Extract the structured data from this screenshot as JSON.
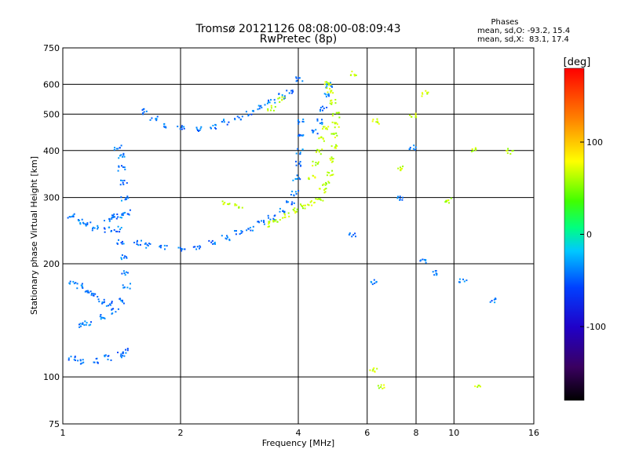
{
  "chart_data": {
    "type": "scatter",
    "title": "Tromsø 20121126 08:08:00-08:09:43",
    "subtitle": "RwPretec (8p)",
    "xlabel": "Frequency [MHz]",
    "ylabel": "Stationary phase Virtual Height [km]",
    "x_scale": "log",
    "y_scale": "log",
    "xlim": [
      1,
      16
    ],
    "ylim": [
      75,
      750
    ],
    "x_ticks": [
      1,
      2,
      4,
      6,
      8,
      10,
      16
    ],
    "x_tick_labels": [
      "1",
      "2",
      "4",
      "6",
      "8",
      "10",
      "16"
    ],
    "y_ticks": [
      75,
      100,
      200,
      300,
      400,
      500,
      600,
      750
    ],
    "y_tick_labels": [
      "75",
      "100",
      "200",
      "300",
      "400",
      "500",
      "600",
      "750"
    ],
    "grid": true,
    "annotation": {
      "title": "Phases",
      "line1": "mean, sd,O: -93.2, 15.4",
      "line2": "mean, sd,X:  83.1, 17.4"
    },
    "colorbar": {
      "label": "[deg]",
      "range": [
        -180,
        180
      ],
      "ticks": [
        100,
        0,
        -100
      ],
      "tick_labels": [
        "100",
        "0",
        "-100"
      ],
      "colormap": "rainbow"
    },
    "series": [
      {
        "name": "O",
        "phase_mean": -93.2,
        "phase_sd": 15.4,
        "points": [
          [
            1.05,
            270
          ],
          [
            1.1,
            260
          ],
          [
            1.15,
            255
          ],
          [
            1.2,
            250
          ],
          [
            1.3,
            248
          ],
          [
            1.38,
            248
          ],
          [
            1.4,
            230
          ],
          [
            1.42,
            210
          ],
          [
            1.43,
            190
          ],
          [
            1.45,
            175
          ],
          [
            1.42,
            160
          ],
          [
            1.35,
            150
          ],
          [
            1.25,
            145
          ],
          [
            1.15,
            140
          ],
          [
            1.1,
            138
          ],
          [
            1.05,
            112
          ],
          [
            1.1,
            110
          ],
          [
            1.2,
            111
          ],
          [
            1.3,
            113
          ],
          [
            1.4,
            115
          ],
          [
            1.45,
            118
          ],
          [
            1.05,
            180
          ],
          [
            1.1,
            175
          ],
          [
            1.15,
            170
          ],
          [
            1.2,
            165
          ],
          [
            1.25,
            160
          ],
          [
            1.3,
            157
          ],
          [
            1.3,
            265
          ],
          [
            1.35,
            268
          ],
          [
            1.4,
            270
          ],
          [
            1.45,
            275
          ],
          [
            1.43,
            300
          ],
          [
            1.42,
            330
          ],
          [
            1.41,
            360
          ],
          [
            1.4,
            390
          ],
          [
            1.38,
            410
          ],
          [
            1.55,
            228
          ],
          [
            1.65,
            225
          ],
          [
            1.8,
            221
          ],
          [
            2.0,
            221
          ],
          [
            2.2,
            223
          ],
          [
            2.4,
            228
          ],
          [
            2.6,
            235
          ],
          [
            2.8,
            242
          ],
          [
            3.0,
            250
          ],
          [
            3.2,
            258
          ],
          [
            3.4,
            266
          ],
          [
            3.6,
            278
          ],
          [
            3.8,
            292
          ],
          [
            3.9,
            310
          ],
          [
            3.95,
            340
          ],
          [
            4.0,
            370
          ],
          [
            4.02,
            400
          ],
          [
            4.03,
            440
          ],
          [
            4.05,
            480
          ],
          [
            1.6,
            510
          ],
          [
            1.7,
            490
          ],
          [
            1.8,
            470
          ],
          [
            2.0,
            460
          ],
          [
            2.2,
            458
          ],
          [
            2.4,
            465
          ],
          [
            2.6,
            478
          ],
          [
            2.8,
            490
          ],
          [
            3.0,
            505
          ],
          [
            3.2,
            525
          ],
          [
            3.4,
            545
          ],
          [
            3.6,
            560
          ],
          [
            3.8,
            575
          ],
          [
            4.0,
            620
          ],
          [
            4.4,
            450
          ],
          [
            4.5,
            480
          ],
          [
            4.6,
            520
          ],
          [
            4.7,
            560
          ],
          [
            4.75,
            600
          ],
          [
            5.5,
            240
          ],
          [
            6.2,
            180
          ],
          [
            7.2,
            300
          ],
          [
            7.8,
            410
          ],
          [
            8.3,
            205
          ],
          [
            8.8,
            190
          ],
          [
            10.5,
            180
          ],
          [
            12.5,
            160
          ]
        ]
      },
      {
        "name": "X",
        "phase_mean": 83.1,
        "phase_sd": 17.4,
        "points": [
          [
            3.3,
            256
          ],
          [
            3.5,
            262
          ],
          [
            3.7,
            270
          ],
          [
            3.9,
            278
          ],
          [
            4.1,
            285
          ],
          [
            4.3,
            292
          ],
          [
            4.5,
            300
          ],
          [
            4.6,
            315
          ],
          [
            4.7,
            330
          ],
          [
            4.8,
            350
          ],
          [
            4.85,
            380
          ],
          [
            4.9,
            410
          ],
          [
            4.92,
            440
          ],
          [
            4.95,
            470
          ],
          [
            4.97,
            500
          ],
          [
            4.9,
            540
          ],
          [
            4.8,
            580
          ],
          [
            4.75,
            610
          ],
          [
            4.3,
            340
          ],
          [
            4.4,
            370
          ],
          [
            4.5,
            400
          ],
          [
            4.6,
            430
          ],
          [
            4.7,
            460
          ],
          [
            2.6,
            290
          ],
          [
            2.8,
            285
          ],
          [
            3.4,
            520
          ],
          [
            3.6,
            550
          ],
          [
            5.5,
            645
          ],
          [
            6.3,
            480
          ],
          [
            6.2,
            105
          ],
          [
            6.5,
            95
          ],
          [
            7.2,
            360
          ],
          [
            7.8,
            500
          ],
          [
            8.4,
            570
          ],
          [
            9.6,
            295
          ],
          [
            11.3,
            405
          ],
          [
            11.5,
            95
          ],
          [
            13.8,
            400
          ]
        ]
      }
    ]
  }
}
